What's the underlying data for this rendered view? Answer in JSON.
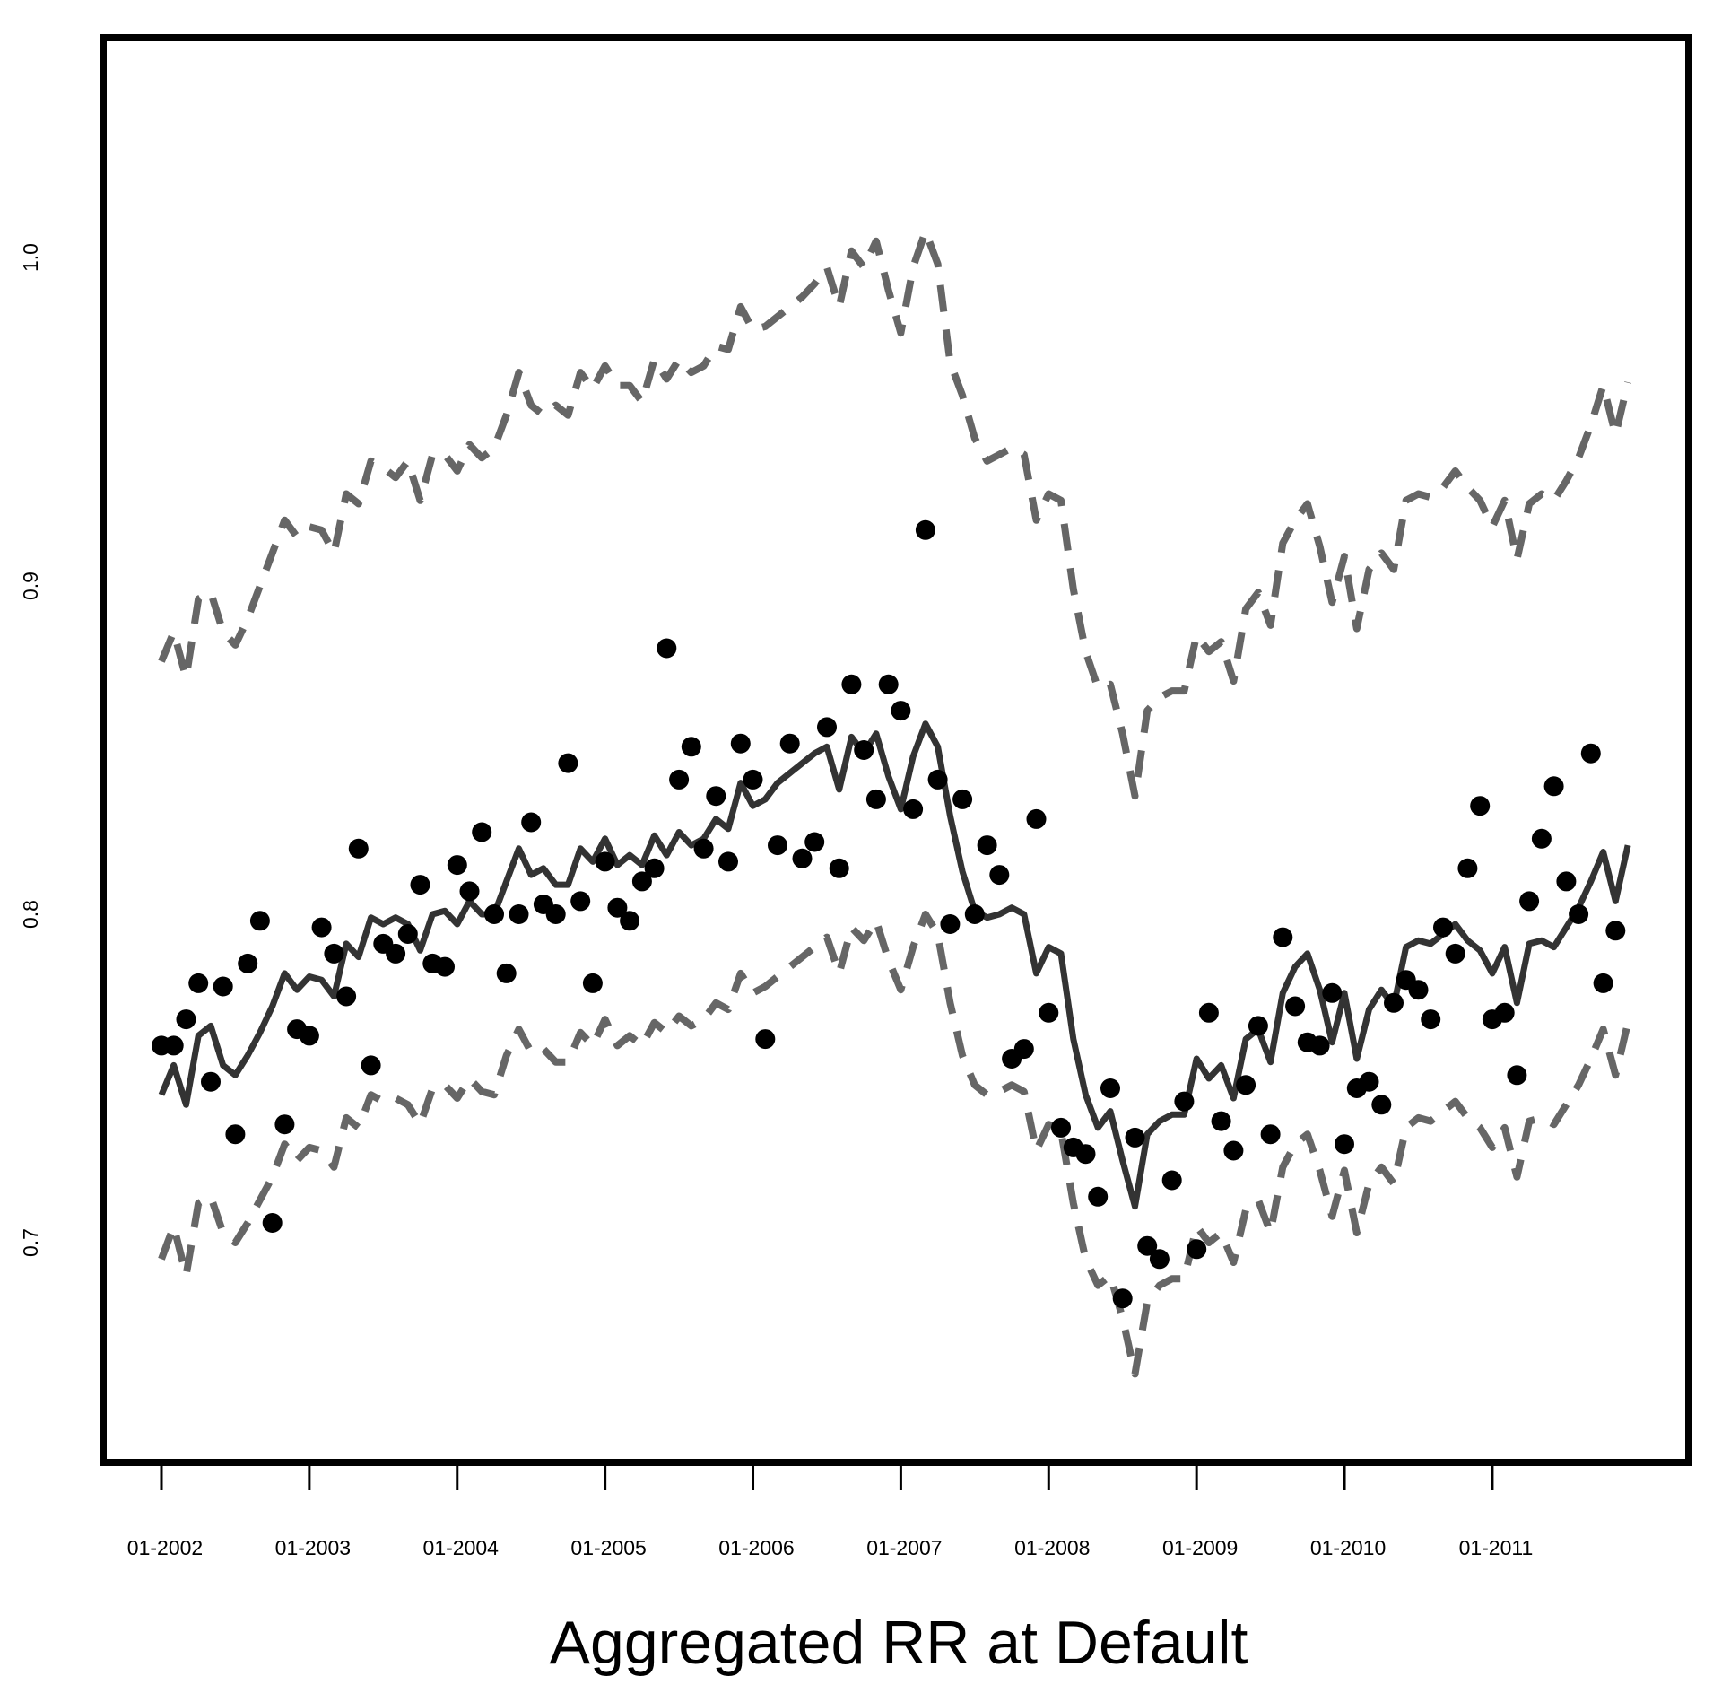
{
  "chart_data": {
    "type": "line",
    "title": "",
    "xlabel": "Aggregated RR at Default",
    "ylabel": "",
    "x_ticks": [
      "01-2002",
      "01-2003",
      "01-2004",
      "01-2005",
      "01-2006",
      "01-2007",
      "01-2008",
      "01-2009",
      "01-2010",
      "01-2011"
    ],
    "y_ticks": [
      "0.7",
      "0.8",
      "0.9",
      "1.0"
    ],
    "x_start": "2002-01",
    "x_end": "2011-12",
    "ylim": [
      0.635,
      1.065
    ],
    "grid": false,
    "legend": "none",
    "colors": {
      "fitted": "#333333",
      "band": "#666666",
      "points": "#000000",
      "frame": "#000000"
    },
    "series": [
      {
        "style": "points",
        "values": [
          0.76,
          0.76,
          0.768,
          0.779,
          0.749,
          0.778,
          0.733,
          0.785,
          0.798,
          0.706,
          0.736,
          0.765,
          0.763,
          0.796,
          0.788,
          0.775,
          0.82,
          0.754,
          0.791,
          0.788,
          0.794,
          0.809,
          0.785,
          0.784,
          0.815,
          0.807,
          0.825,
          0.8,
          0.782,
          0.8,
          0.828,
          0.803,
          0.8,
          0.846,
          0.804,
          0.779,
          0.816,
          0.802,
          0.798,
          0.81,
          0.814,
          0.881,
          0.841,
          0.851,
          0.82,
          0.836,
          0.816,
          0.852,
          0.841,
          0.762,
          0.821,
          0.852,
          0.817,
          0.822,
          0.857,
          0.814,
          0.87,
          0.85,
          0.835,
          0.87,
          0.862,
          0.832,
          0.917,
          0.841,
          0.797,
          0.835,
          0.8,
          0.821,
          0.812,
          0.756,
          0.759,
          0.829,
          0.77,
          0.735,
          0.729,
          0.727,
          0.714,
          0.747,
          0.683,
          0.732,
          0.699,
          0.695,
          0.719,
          0.743,
          0.698,
          0.77,
          0.737,
          0.728,
          0.748,
          0.766,
          0.733,
          0.793,
          0.772,
          0.761,
          0.76,
          0.776,
          0.73,
          0.747,
          0.749,
          0.742,
          0.773,
          0.78,
          0.777,
          0.768,
          0.796,
          0.788,
          0.814,
          0.833,
          0.768,
          0.77,
          0.751,
          0.804,
          0.823,
          0.839,
          0.81,
          0.8,
          0.849,
          0.779,
          0.795
        ]
      },
      {
        "style": "solid",
        "values": [
          0.745,
          0.754,
          0.742,
          0.763,
          0.766,
          0.754,
          0.751,
          0.757,
          0.764,
          0.772,
          0.782,
          0.777,
          0.781,
          0.78,
          0.775,
          0.791,
          0.787,
          0.799,
          0.797,
          0.799,
          0.797,
          0.789,
          0.8,
          0.801,
          0.797,
          0.804,
          0.8,
          0.8,
          0.81,
          0.82,
          0.812,
          0.814,
          0.809,
          0.809,
          0.82,
          0.816,
          0.823,
          0.815,
          0.818,
          0.815,
          0.824,
          0.818,
          0.825,
          0.821,
          0.823,
          0.829,
          0.826,
          0.84,
          0.833,
          0.835,
          0.84,
          0.843,
          0.846,
          0.849,
          0.851,
          0.838,
          0.854,
          0.849,
          0.855,
          0.842,
          0.832,
          0.848,
          0.858,
          0.851,
          0.83,
          0.813,
          0.801,
          0.799,
          0.8,
          0.802,
          0.8,
          0.782,
          0.79,
          0.788,
          0.762,
          0.745,
          0.735,
          0.74,
          0.725,
          0.711,
          0.733,
          0.737,
          0.739,
          0.739,
          0.756,
          0.75,
          0.754,
          0.744,
          0.762,
          0.765,
          0.755,
          0.776,
          0.784,
          0.788,
          0.777,
          0.761,
          0.776,
          0.756,
          0.771,
          0.777,
          0.772,
          0.79,
          0.792,
          0.791,
          0.794,
          0.797,
          0.792,
          0.789,
          0.782,
          0.79,
          0.773,
          0.791,
          0.792,
          0.79,
          0.796,
          0.802,
          0.81,
          0.819,
          0.804,
          0.821
        ]
      },
      {
        "style": "dashed",
        "values": [
          0.877,
          0.886,
          0.872,
          0.896,
          0.898,
          0.886,
          0.882,
          0.89,
          0.9,
          0.91,
          0.92,
          0.915,
          0.918,
          0.917,
          0.91,
          0.928,
          0.925,
          0.938,
          0.936,
          0.933,
          0.938,
          0.926,
          0.94,
          0.94,
          0.935,
          0.943,
          0.939,
          0.942,
          0.952,
          0.965,
          0.955,
          0.952,
          0.955,
          0.952,
          0.965,
          0.96,
          0.967,
          0.961,
          0.961,
          0.956,
          0.969,
          0.963,
          0.969,
          0.965,
          0.967,
          0.973,
          0.972,
          0.985,
          0.978,
          0.979,
          0.982,
          0.985,
          0.988,
          0.992,
          0.997,
          0.985,
          1.002,
          0.997,
          1.005,
          0.99,
          0.977,
          0.997,
          1.008,
          0.998,
          0.968,
          0.958,
          0.945,
          0.938,
          0.94,
          0.942,
          0.94,
          0.92,
          0.928,
          0.926,
          0.899,
          0.88,
          0.869,
          0.87,
          0.855,
          0.836,
          0.862,
          0.866,
          0.868,
          0.868,
          0.885,
          0.88,
          0.883,
          0.871,
          0.893,
          0.898,
          0.888,
          0.913,
          0.92,
          0.925,
          0.912,
          0.895,
          0.909,
          0.887,
          0.905,
          0.91,
          0.905,
          0.926,
          0.928,
          0.927,
          0.93,
          0.935,
          0.93,
          0.926,
          0.918,
          0.926,
          0.908,
          0.925,
          0.928,
          0.926,
          0.932,
          0.939,
          0.949,
          0.961,
          0.946,
          0.962
        ]
      },
      {
        "style": "dashed",
        "values": [
          0.695,
          0.705,
          0.69,
          0.712,
          0.714,
          0.703,
          0.7,
          0.706,
          0.713,
          0.72,
          0.73,
          0.725,
          0.729,
          0.728,
          0.723,
          0.738,
          0.735,
          0.745,
          0.743,
          0.744,
          0.742,
          0.736,
          0.747,
          0.748,
          0.744,
          0.75,
          0.746,
          0.745,
          0.757,
          0.765,
          0.758,
          0.759,
          0.755,
          0.755,
          0.764,
          0.76,
          0.768,
          0.76,
          0.763,
          0.76,
          0.767,
          0.764,
          0.769,
          0.766,
          0.768,
          0.773,
          0.771,
          0.782,
          0.776,
          0.778,
          0.781,
          0.784,
          0.787,
          0.79,
          0.793,
          0.782,
          0.796,
          0.792,
          0.798,
          0.786,
          0.777,
          0.79,
          0.8,
          0.794,
          0.773,
          0.757,
          0.748,
          0.745,
          0.746,
          0.748,
          0.746,
          0.728,
          0.736,
          0.734,
          0.712,
          0.695,
          0.687,
          0.69,
          0.677,
          0.66,
          0.682,
          0.687,
          0.689,
          0.689,
          0.705,
          0.7,
          0.703,
          0.694,
          0.71,
          0.713,
          0.703,
          0.723,
          0.73,
          0.733,
          0.722,
          0.708,
          0.722,
          0.703,
          0.718,
          0.723,
          0.718,
          0.735,
          0.738,
          0.737,
          0.74,
          0.743,
          0.738,
          0.735,
          0.729,
          0.735,
          0.72,
          0.737,
          0.738,
          0.736,
          0.742,
          0.748,
          0.756,
          0.765,
          0.751,
          0.767
        ]
      }
    ]
  }
}
